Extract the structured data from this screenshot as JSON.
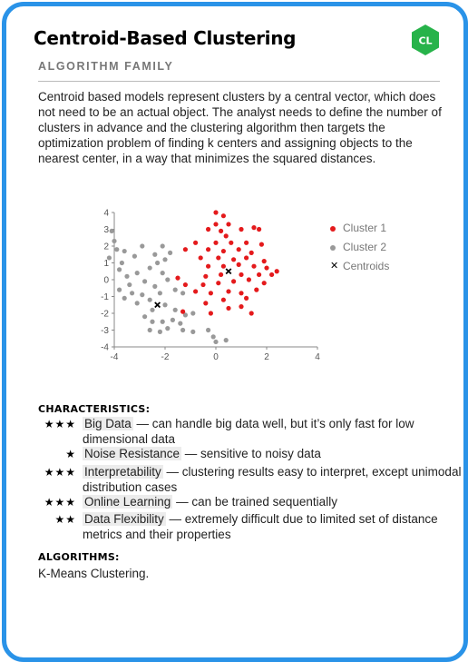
{
  "card": {
    "title": "Centroid-Based Clustering",
    "badge": "CL",
    "subtitle": "ALGORITHM FAMILY",
    "description": "Centroid based models represent clusters by a central vector, which does not need to be an actual object. The analyst needs to define the number of clusters in advance and the clustering algorithm then targets the optimization problem of finding k centers and assigning objects to the nearest center, in a way that minimizes the squared distances.",
    "colors": {
      "border": "#2a93e8",
      "badge": "#27b34a",
      "cluster1": "#e41a1c",
      "cluster2": "#999999"
    }
  },
  "chart_data": {
    "type": "scatter",
    "xlim": [
      -4,
      4
    ],
    "ylim": [
      -4,
      4
    ],
    "xticks": [
      "-4",
      "-2",
      "0",
      "2",
      "4"
    ],
    "yticks": [
      "4",
      "3",
      "2",
      "1",
      "0",
      "-1",
      "-2",
      "-3",
      "-4"
    ],
    "legend_position": "right",
    "series": [
      {
        "name": "Cluster 1",
        "color": "#e41a1c",
        "points": [
          [
            0.0,
            4.0
          ],
          [
            0.3,
            3.8
          ],
          [
            0.0,
            3.3
          ],
          [
            0.5,
            3.3
          ],
          [
            1.5,
            3.1
          ],
          [
            -0.3,
            3.0
          ],
          [
            0.2,
            2.9
          ],
          [
            1.0,
            3.0
          ],
          [
            1.7,
            3.0
          ],
          [
            0.4,
            2.6
          ],
          [
            -0.8,
            2.2
          ],
          [
            0.0,
            2.2
          ],
          [
            0.6,
            2.2
          ],
          [
            1.2,
            2.2
          ],
          [
            1.8,
            2.1
          ],
          [
            -1.2,
            1.8
          ],
          [
            -0.3,
            1.8
          ],
          [
            0.3,
            1.7
          ],
          [
            0.9,
            1.8
          ],
          [
            1.4,
            1.6
          ],
          [
            -0.6,
            1.3
          ],
          [
            0.1,
            1.3
          ],
          [
            0.7,
            1.2
          ],
          [
            1.2,
            1.3
          ],
          [
            1.9,
            1.1
          ],
          [
            -0.3,
            0.8
          ],
          [
            0.3,
            0.8
          ],
          [
            0.9,
            0.9
          ],
          [
            1.5,
            0.8
          ],
          [
            2.0,
            0.7
          ],
          [
            2.4,
            0.5
          ],
          [
            1.0,
            0.3
          ],
          [
            1.7,
            0.3
          ],
          [
            2.2,
            0.3
          ],
          [
            0.2,
            0.3
          ],
          [
            -0.4,
            0.2
          ],
          [
            -1.5,
            0.1
          ],
          [
            1.3,
            0.0
          ],
          [
            0.7,
            -0.1
          ],
          [
            -1.2,
            -0.3
          ],
          [
            -0.5,
            -0.3
          ],
          [
            0.1,
            -0.2
          ],
          [
            1.9,
            -0.2
          ],
          [
            -0.8,
            -0.7
          ],
          [
            -0.2,
            -0.8
          ],
          [
            0.5,
            -0.7
          ],
          [
            1.0,
            -0.8
          ],
          [
            1.6,
            -0.6
          ],
          [
            0.3,
            -1.2
          ],
          [
            1.2,
            -1.1
          ],
          [
            -0.4,
            -1.4
          ],
          [
            0.5,
            -1.7
          ],
          [
            1.0,
            -1.6
          ],
          [
            -1.3,
            -1.9
          ],
          [
            -0.2,
            -2.0
          ],
          [
            1.4,
            -2.0
          ]
        ]
      },
      {
        "name": "Cluster 2",
        "color": "#999999",
        "points": [
          [
            -4.1,
            2.9
          ],
          [
            -4.0,
            2.3
          ],
          [
            -3.9,
            1.8
          ],
          [
            -3.6,
            1.7
          ],
          [
            -4.2,
            1.3
          ],
          [
            -3.7,
            1.0
          ],
          [
            -3.2,
            1.4
          ],
          [
            -2.9,
            2.0
          ],
          [
            -2.4,
            1.5
          ],
          [
            -3.8,
            0.6
          ],
          [
            -3.5,
            0.2
          ],
          [
            -3.1,
            0.4
          ],
          [
            -2.6,
            0.7
          ],
          [
            -2.3,
            1.0
          ],
          [
            -2.0,
            1.2
          ],
          [
            -1.8,
            1.6
          ],
          [
            -2.1,
            2.0
          ],
          [
            -2.1,
            0.4
          ],
          [
            -1.9,
            0.0
          ],
          [
            -2.8,
            -0.1
          ],
          [
            -3.4,
            -0.3
          ],
          [
            -3.8,
            -0.6
          ],
          [
            -3.3,
            -0.8
          ],
          [
            -2.9,
            -0.9
          ],
          [
            -2.4,
            -0.4
          ],
          [
            -2.2,
            -0.8
          ],
          [
            -1.6,
            -0.6
          ],
          [
            -1.3,
            -0.8
          ],
          [
            -3.1,
            -1.4
          ],
          [
            -2.6,
            -1.2
          ],
          [
            -2.0,
            -1.5
          ],
          [
            -1.6,
            -1.8
          ],
          [
            -1.2,
            -2.1
          ],
          [
            -0.9,
            -2.0
          ],
          [
            -2.5,
            -1.8
          ],
          [
            -2.8,
            -2.2
          ],
          [
            -2.5,
            -2.5
          ],
          [
            -2.1,
            -2.5
          ],
          [
            -1.7,
            -2.4
          ],
          [
            -1.4,
            -2.6
          ],
          [
            -1.9,
            -2.9
          ],
          [
            -2.2,
            -3.1
          ],
          [
            -2.6,
            -3.0
          ],
          [
            -1.3,
            -3.0
          ],
          [
            -0.9,
            -3.1
          ],
          [
            -0.3,
            -3.0
          ],
          [
            -0.1,
            -3.4
          ],
          [
            0.0,
            -3.7
          ],
          [
            0.4,
            -3.6
          ],
          [
            -3.6,
            -1.1
          ]
        ]
      },
      {
        "name": "Centroids",
        "color": "#000000",
        "points": [
          [
            0.5,
            0.5
          ],
          [
            -2.3,
            -1.5
          ]
        ]
      }
    ]
  },
  "characteristics": {
    "heading": "CHARACTERISTICS:",
    "items": [
      {
        "stars": "★★★",
        "term": "Big Data",
        "text": " — can handle big data well, but it’s only fast for low dimensional data"
      },
      {
        "stars": "★",
        "term": "Noise Resistance",
        "text": " — sensitive to noisy data"
      },
      {
        "stars": "★★★",
        "term": "Interpretability",
        "text": " — clustering results easy to interpret, except unimodal distribution cases"
      },
      {
        "stars": "★★★",
        "term": "Online Learning",
        "text": " —  can be trained sequentially"
      },
      {
        "stars": "★★",
        "term": "Data Flexibility",
        "text": " — extremely difficult due to limited set of distance metrics and their properties"
      }
    ]
  },
  "algorithms": {
    "heading": "ALGORITHMS:",
    "text": "K-Means Clustering."
  }
}
